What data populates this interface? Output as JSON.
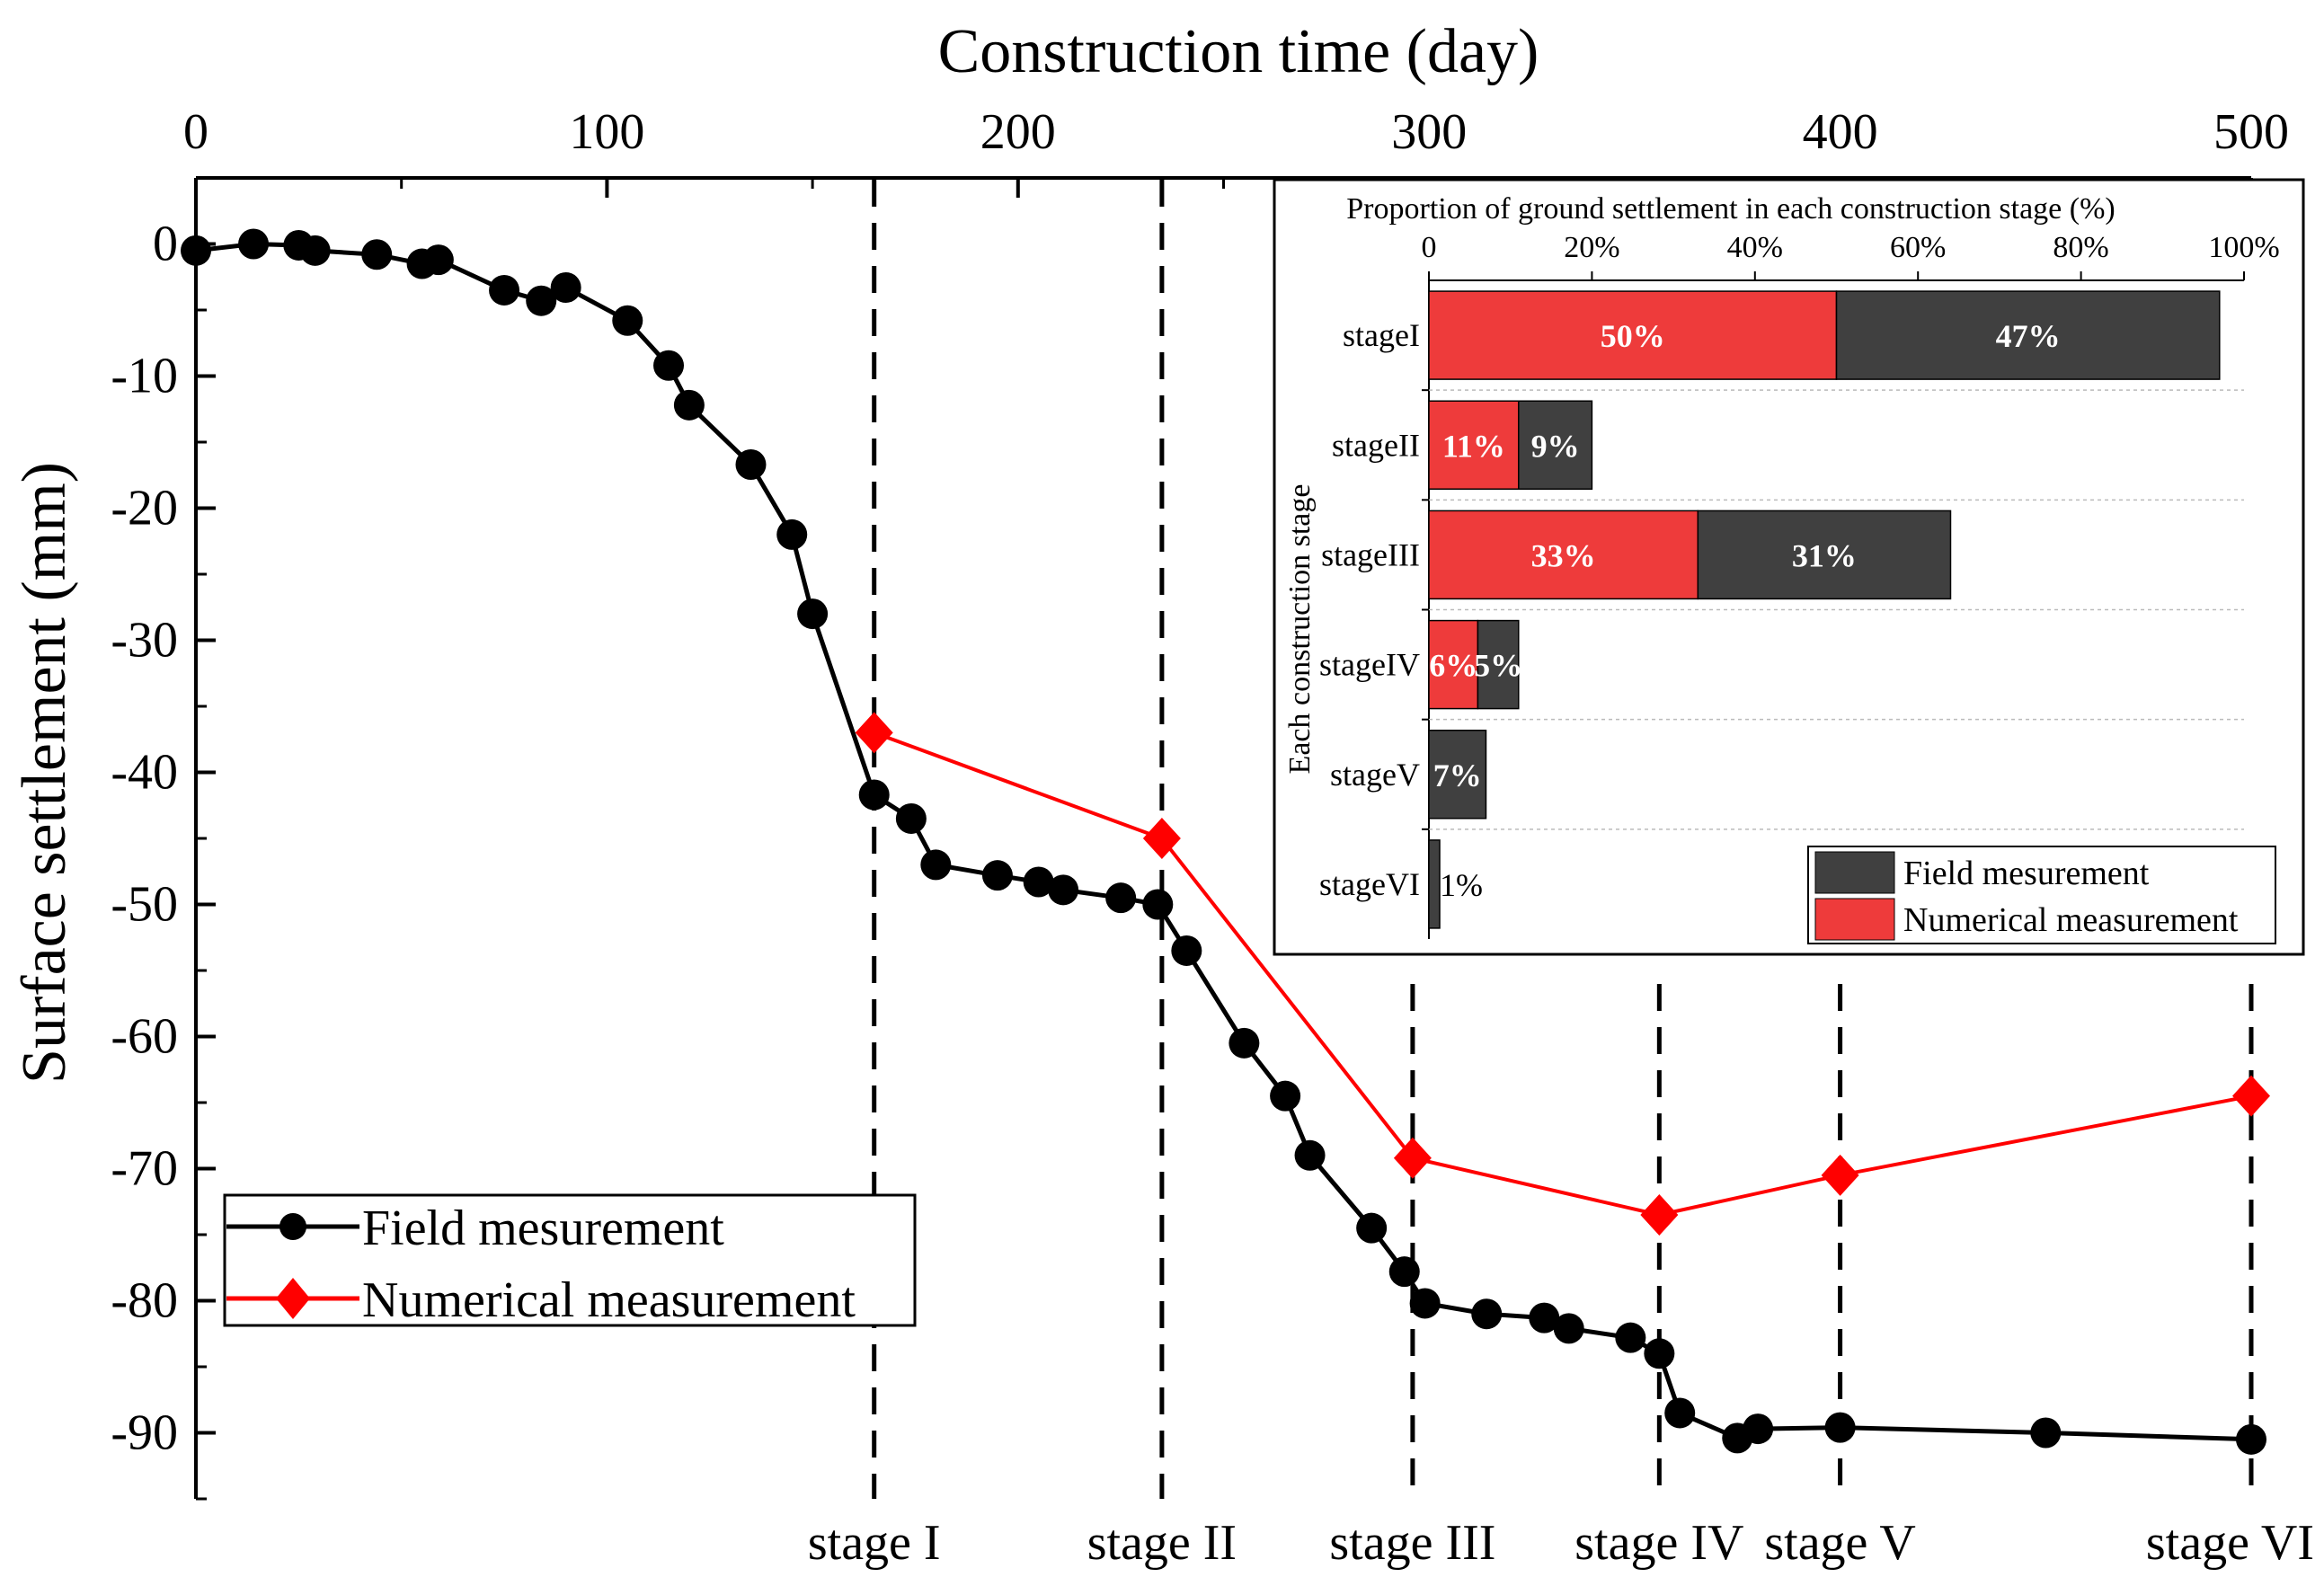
{
  "chart_data": [
    {
      "type": "line",
      "xlabel": "Construction time (day)",
      "ylabel": "Surface settlement (mm)",
      "xlim": [
        0,
        500
      ],
      "ylim": [
        -95,
        5
      ],
      "x_ticks": [
        "0",
        "100",
        "200",
        "300",
        "400",
        "500"
      ],
      "y_ticks": [
        "0",
        "-10",
        "-20",
        "-30",
        "-40",
        "-50",
        "-60",
        "-70",
        "-80",
        "-90"
      ],
      "legend_position": "bottom-left",
      "series": [
        {
          "name": "Field mesurement",
          "color": "#000000",
          "marker": "circle",
          "x": [
            0,
            14,
            25,
            29,
            44,
            55,
            59,
            75,
            84,
            90,
            105,
            115,
            120,
            135,
            145,
            150,
            165,
            174,
            180,
            195,
            205,
            211,
            225,
            234,
            241,
            255,
            265,
            271,
            286,
            294,
            299,
            314,
            328,
            334,
            349,
            356,
            361,
            375,
            380,
            400,
            450,
            500
          ],
          "y": [
            -0.5,
            0,
            -0.1,
            -0.5,
            -0.8,
            -1.5,
            -1.2,
            -3.5,
            -4.3,
            -3.3,
            -5.8,
            -9.2,
            -12.2,
            -16.7,
            -22.0,
            -28.0,
            -41.7,
            -43.5,
            -47.0,
            -47.8,
            -48.3,
            -48.9,
            -49.5,
            -50.0,
            -53.5,
            -60.5,
            -64.5,
            -69.0,
            -74.5,
            -77.8,
            -80.2,
            -81.0,
            -81.3,
            -82.1,
            -82.8,
            -84.0,
            -88.5,
            -90.4,
            -89.7,
            -89.6,
            -90.0,
            -90.5
          ]
        },
        {
          "name": "Numerical measurement",
          "color": "#ff0000",
          "marker": "diamond",
          "x": [
            165,
            235,
            296,
            356,
            400,
            500
          ],
          "y": [
            -37.0,
            -45.0,
            -69.2,
            -73.5,
            -70.5,
            -64.5
          ]
        }
      ],
      "stage_markers": [
        {
          "label": "stage I",
          "x": 165
        },
        {
          "label": "stage II",
          "x": 235
        },
        {
          "label": "stage III",
          "x": 296
        },
        {
          "label": "stage IV",
          "x": 356
        },
        {
          "label": "stage V",
          "x": 400
        },
        {
          "label": "stage VI",
          "x": 500
        }
      ]
    },
    {
      "type": "bar",
      "orientation": "horizontal",
      "stacked": true,
      "xlabel": "Proportion of ground settlement in each construction stage (%)",
      "ylabel": "Each construction stage",
      "xlim": [
        0,
        100
      ],
      "x_ticks": [
        "0",
        "20%",
        "40%",
        "60%",
        "80%",
        "100%"
      ],
      "categories": [
        "stageI",
        "stageII",
        "stageIII",
        "stageIV",
        "stageV",
        "stageVI"
      ],
      "series": [
        {
          "name": "Numerical measurement",
          "color": "#ee3b3b",
          "values": [
            50,
            11,
            33,
            6,
            0,
            0
          ],
          "labels": [
            "50%",
            "11%",
            "33%",
            "6%",
            "",
            ""
          ]
        },
        {
          "name": "Field mesurement",
          "color": "#404040",
          "values": [
            47,
            9,
            31,
            5,
            7,
            1
          ],
          "labels": [
            "47%",
            "9%",
            "31%",
            "5%",
            "7%",
            "1%"
          ]
        }
      ],
      "legend_position": "bottom-right",
      "legend_order": [
        "Field mesurement",
        "Numerical measurement"
      ],
      "grid": "horizontal dashed"
    }
  ]
}
